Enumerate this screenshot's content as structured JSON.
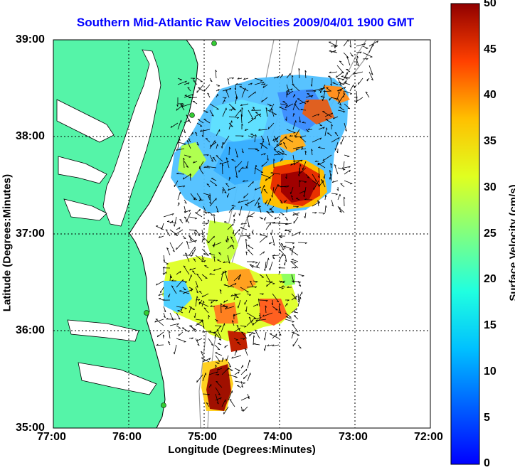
{
  "title": "Southern Mid-Atlantic Raw Velocities 2009/04/01 1900 GMT",
  "axes": {
    "xlabel": "Longitude (Degrees:Minutes)",
    "ylabel": "Latitude (Degrees:Minutes)",
    "x_ticks": [
      "77:00",
      "76:00",
      "75:00",
      "74:00",
      "73:00",
      "72:00"
    ],
    "y_ticks": [
      "39:00",
      "38:00",
      "37:00",
      "36:00",
      "35:00"
    ]
  },
  "colorbar": {
    "label": "Surface Velocity (cm/s)",
    "ticks": [
      "50",
      "45",
      "40",
      "35",
      "30",
      "25",
      "20",
      "15",
      "10",
      "5",
      "0"
    ],
    "range": [
      0,
      50
    ]
  },
  "colors": {
    "land": "#55f4a8",
    "title": "#0000ff",
    "coast_line": "#000000",
    "isobath": "#999999"
  },
  "map_extent": {
    "lon": [
      -77,
      -72
    ],
    "lat": [
      35,
      39
    ]
  }
}
